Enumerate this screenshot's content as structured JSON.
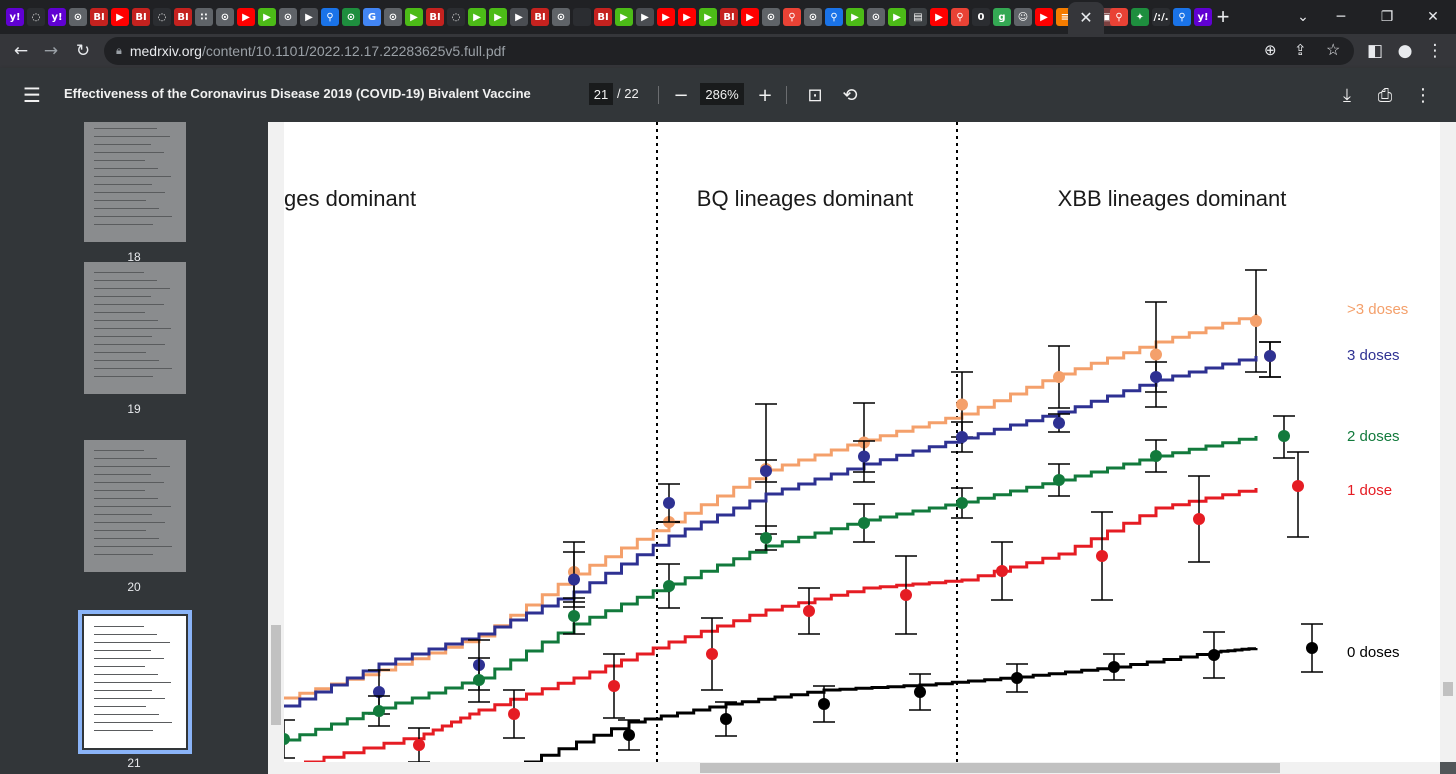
{
  "browser": {
    "favicons": [
      {
        "icon": "yahoo-icon",
        "glyph": "y!",
        "color": "#6001d2"
      },
      {
        "icon": "shield-icon",
        "glyph": "◌",
        "color": "#2b2d31"
      },
      {
        "icon": "yahoo-icon",
        "glyph": "y!",
        "color": "#6001d2"
      },
      {
        "icon": "globe-icon",
        "glyph": "⊙",
        "color": "#5f6368"
      },
      {
        "icon": "bi-icon",
        "glyph": "BI",
        "color": "#c5221f"
      },
      {
        "icon": "youtube-icon",
        "glyph": "▶",
        "color": "#ff0000"
      },
      {
        "icon": "bi-icon",
        "glyph": "BI",
        "color": "#c5221f"
      },
      {
        "icon": "shield-icon",
        "glyph": "◌",
        "color": "#2b2d31"
      },
      {
        "icon": "bi-icon",
        "glyph": "BI",
        "color": "#c5221f"
      },
      {
        "icon": "dots-icon",
        "glyph": "∷",
        "color": "#5f6368"
      },
      {
        "icon": "globe-icon",
        "glyph": "⊙",
        "color": "#5f6368"
      },
      {
        "icon": "youtube-icon",
        "glyph": "▶",
        "color": "#ff0000"
      },
      {
        "icon": "play-icon",
        "glyph": "▶",
        "color": "#4cbb17"
      },
      {
        "icon": "globe-icon",
        "glyph": "⊙",
        "color": "#5f6368"
      },
      {
        "icon": "play-icon",
        "glyph": "▶",
        "color": "#4a4d52"
      },
      {
        "icon": "search-icon",
        "glyph": "⚲",
        "color": "#1a73e8"
      },
      {
        "icon": "globe-icon",
        "glyph": "⊙",
        "color": "#1e8e3e"
      },
      {
        "icon": "google-icon",
        "glyph": "G",
        "color": "#4285f4"
      },
      {
        "icon": "globe-icon",
        "glyph": "⊙",
        "color": "#5f6368"
      },
      {
        "icon": "play-icon",
        "glyph": "▶",
        "color": "#4cbb17"
      },
      {
        "icon": "bi-icon",
        "glyph": "BI",
        "color": "#c5221f"
      },
      {
        "icon": "shield-icon",
        "glyph": "◌",
        "color": "#2b2d31"
      },
      {
        "icon": "play-icon",
        "glyph": "▶",
        "color": "#4cbb17"
      },
      {
        "icon": "play-icon",
        "glyph": "▶",
        "color": "#4cbb17"
      },
      {
        "icon": "play-icon",
        "glyph": "▶",
        "color": "#4a4d52"
      },
      {
        "icon": "bi-icon",
        "glyph": "BI",
        "color": "#c5221f"
      },
      {
        "icon": "globe-icon",
        "glyph": "⊙",
        "color": "#5f6368"
      },
      {
        "icon": "blank-icon",
        "glyph": "",
        "color": "#2b2d31"
      },
      {
        "icon": "bi-icon",
        "glyph": "BI",
        "color": "#c5221f"
      },
      {
        "icon": "play-icon",
        "glyph": "▶",
        "color": "#4cbb17"
      },
      {
        "icon": "play-icon",
        "glyph": "▶",
        "color": "#4a4d52"
      },
      {
        "icon": "youtube-icon",
        "glyph": "▶",
        "color": "#ff0000"
      },
      {
        "icon": "youtube-icon",
        "glyph": "▶",
        "color": "#ff0000"
      },
      {
        "icon": "play-icon",
        "glyph": "▶",
        "color": "#4cbb17"
      },
      {
        "icon": "bi-icon",
        "glyph": "BI",
        "color": "#c5221f"
      },
      {
        "icon": "youtube-icon",
        "glyph": "▶",
        "color": "#ff0000"
      },
      {
        "icon": "globe-icon",
        "glyph": "⊙",
        "color": "#5f6368"
      },
      {
        "icon": "pin-icon",
        "glyph": "⚲",
        "color": "#e94235"
      },
      {
        "icon": "globe-icon",
        "glyph": "⊙",
        "color": "#5f6368"
      },
      {
        "icon": "search-icon",
        "glyph": "⚲",
        "color": "#1a73e8"
      },
      {
        "icon": "play-icon",
        "glyph": "▶",
        "color": "#4cbb17"
      },
      {
        "icon": "globe-icon",
        "glyph": "⊙",
        "color": "#5f6368"
      },
      {
        "icon": "play-icon",
        "glyph": "▶",
        "color": "#4cbb17"
      },
      {
        "icon": "news-icon",
        "glyph": "▤",
        "color": "#3c4043"
      },
      {
        "icon": "youtube-icon",
        "glyph": "▶",
        "color": "#ff0000"
      },
      {
        "icon": "pin-icon",
        "glyph": "⚲",
        "color": "#e94235"
      },
      {
        "icon": "circle-icon",
        "glyph": "0",
        "color": "#2b2d31"
      },
      {
        "icon": "g-icon",
        "glyph": "g",
        "color": "#34a853"
      },
      {
        "icon": "person-icon",
        "glyph": "☺",
        "color": "#5f6368"
      },
      {
        "icon": "youtube-icon",
        "glyph": "▶",
        "color": "#ff0000"
      },
      {
        "icon": "bookmark-icon",
        "glyph": "≡",
        "color": "#f57c00"
      },
      {
        "icon": "bookmark-icon",
        "glyph": "≡",
        "color": "#f57c00"
      },
      {
        "icon": "photo-icon",
        "glyph": "▣",
        "color": "#7b3f3f"
      }
    ],
    "right_favicons": [
      {
        "icon": "pin-icon",
        "glyph": "⚲",
        "color": "#e94235"
      },
      {
        "icon": "puzzle-icon",
        "glyph": "✦",
        "color": "#1e8e3e"
      },
      {
        "icon": "text-icon",
        "glyph": "/:/.",
        "color": "#2b2d31"
      },
      {
        "icon": "search-icon",
        "glyph": "⚲",
        "color": "#1a73e8"
      },
      {
        "icon": "yahoo-icon",
        "glyph": "y!",
        "color": "#6001d2"
      }
    ],
    "url_domain": "medrxiv.org",
    "url_path": "/content/10.1101/2022.12.17.22283625v5.full.pdf"
  },
  "pdf_toolbar": {
    "title": "Effectiveness of the Coronavirus Disease 2019 (COVID-19) Bivalent Vaccine",
    "current_page": "21",
    "total_pages": "/ 22",
    "zoom": "286%"
  },
  "thumbnails": [
    {
      "label": "18",
      "selected": false
    },
    {
      "label": "19",
      "selected": false
    },
    {
      "label": "20",
      "selected": false
    },
    {
      "label": "21",
      "selected": true
    }
  ],
  "figure": {
    "period_labels": [
      "ges dominant",
      "BQ lineages dominant",
      "XBB lineages dominant"
    ],
    "series": [
      {
        "name": ">3 doses",
        "color": "#f4a06b"
      },
      {
        "name": "3 doses",
        "color": "#2e3192"
      },
      {
        "name": "2 doses",
        "color": "#127a3c"
      },
      {
        "name": "1 dose",
        "color": "#e51c23"
      },
      {
        "name": "0 doses",
        "color": "#000000"
      }
    ]
  }
}
